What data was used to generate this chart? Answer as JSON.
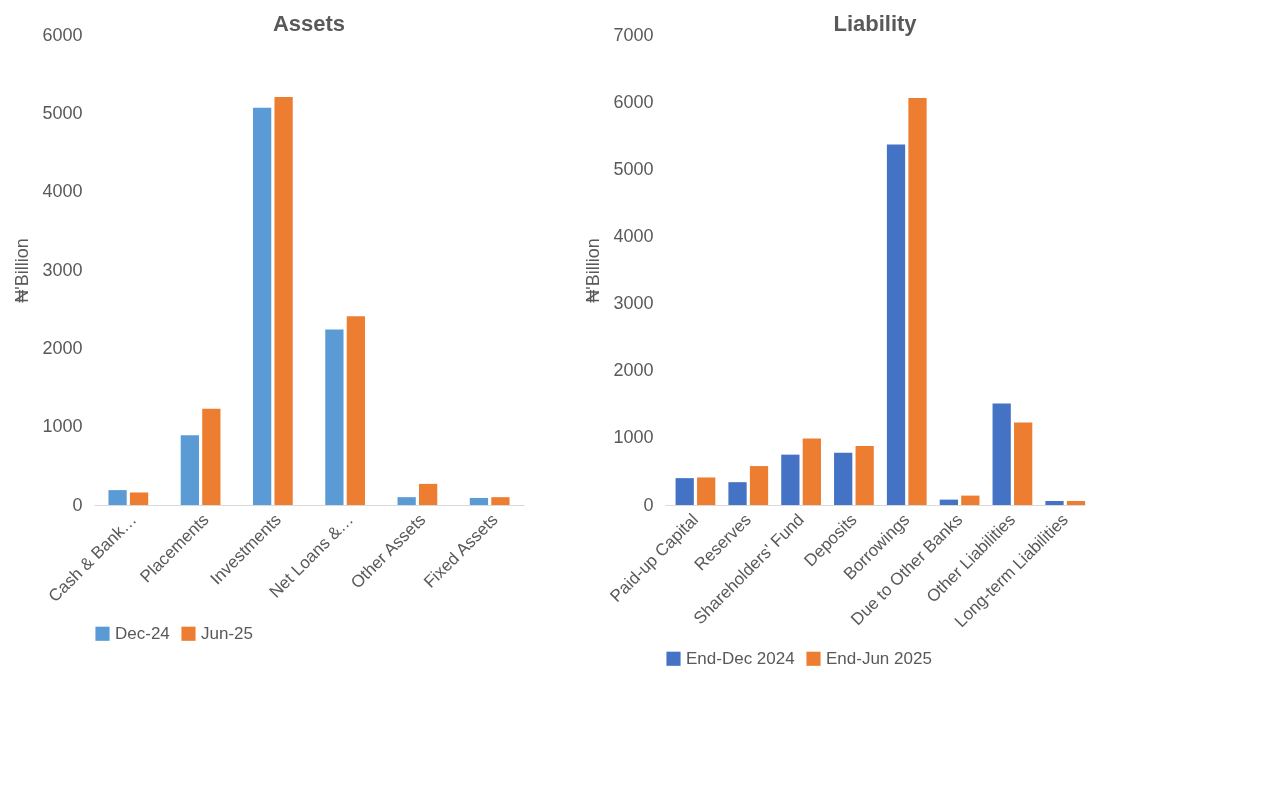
{
  "chart_data": [
    {
      "type": "bar",
      "title": "Assets",
      "ylabel": "₦'Billion",
      "categories": [
        "Cash & Bank…",
        "Placements",
        "Investments",
        "Net Loans &…",
        "Other Assets",
        "Fixed Assets"
      ],
      "ylim": [
        0,
        6000
      ],
      "yticks": [
        0,
        1000,
        2000,
        3000,
        4000,
        5000,
        6000
      ],
      "legend": "bottom",
      "series": [
        {
          "name": "Dec-24",
          "color": "#5b9bd5",
          "values": [
            190,
            890,
            5070,
            2240,
            100,
            90
          ]
        },
        {
          "name": "Jun-25",
          "color": "#ed7d31",
          "values": [
            160,
            1230,
            5210,
            2410,
            270,
            100
          ]
        }
      ]
    },
    {
      "type": "bar",
      "title": "Liability",
      "ylabel": "₦'Billion",
      "categories": [
        "Paid-up Capital",
        "Reserves",
        "Shareholders' Fund",
        "Deposits",
        "Borrowings",
        "Due to Other Banks",
        "Other Liabilities",
        "Long-term Liabilities"
      ],
      "ylim": [
        0,
        7000
      ],
      "yticks": [
        0,
        1000,
        2000,
        3000,
        4000,
        5000,
        6000,
        7000
      ],
      "legend": "bottom",
      "series": [
        {
          "name": "End-Dec 2024",
          "color": "#4472c4",
          "values": [
            400,
            340,
            750,
            780,
            5370,
            80,
            1510,
            60
          ]
        },
        {
          "name": "End-Jun 2025",
          "color": "#ed7d31",
          "values": [
            410,
            580,
            990,
            880,
            6060,
            140,
            1230,
            60
          ]
        }
      ]
    }
  ]
}
